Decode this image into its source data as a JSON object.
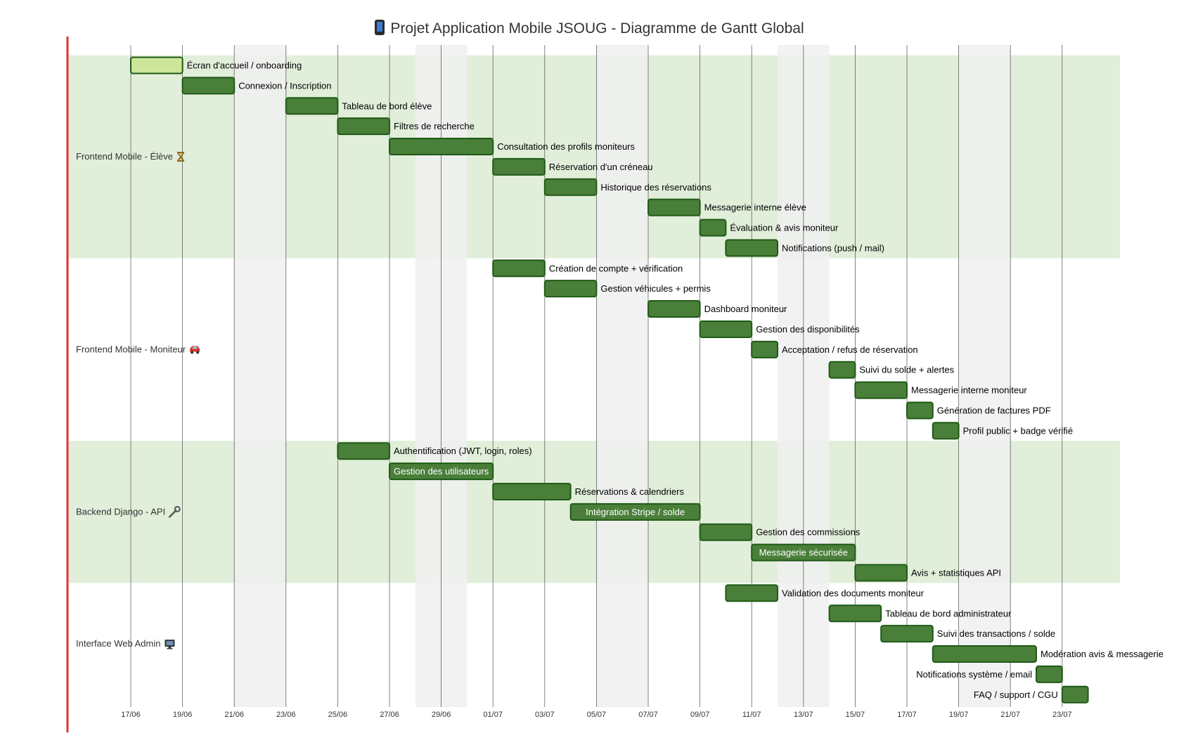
{
  "title": "Projet Application Mobile JSOUG - Diagramme de Gantt Global",
  "title_icon": "mobile-phone-icon",
  "colors": {
    "task_fill": "#4a7f3a",
    "task_stroke": "#1f5a16",
    "active_fill": "#cde59a",
    "section_band": "#e1eed9",
    "weekend": "#f0f0f0",
    "today_line": "#e03030",
    "grid": "#333333"
  },
  "chart_data": {
    "type": "gantt",
    "title": "Projet Application Mobile JSOUG - Diagramme de Gantt Global",
    "x_axis": {
      "start": "2025-06-15",
      "end": "2025-07-25",
      "tick_labels": [
        "17/06",
        "19/06",
        "21/06",
        "23/06",
        "25/06",
        "27/06",
        "29/06",
        "01/07",
        "03/07",
        "05/07",
        "07/07",
        "09/07",
        "11/07",
        "13/07",
        "15/07",
        "17/07",
        "19/07",
        "21/07",
        "23/07"
      ]
    },
    "weekends": [
      [
        "2025-06-21",
        "2025-06-23"
      ],
      [
        "2025-06-28",
        "2025-06-30"
      ],
      [
        "2025-07-05",
        "2025-07-07"
      ],
      [
        "2025-07-12",
        "2025-07-14"
      ],
      [
        "2025-07-19",
        "2025-07-21"
      ]
    ],
    "sections": [
      {
        "name": "Frontend Mobile - Élève",
        "icon": "hourglass-icon",
        "shaded": true,
        "tasks": [
          {
            "name": "Écran d'accueil / onboarding",
            "start": "2025-06-17",
            "end": "2025-06-19",
            "status": "active"
          },
          {
            "name": "Connexion / Inscription",
            "start": "2025-06-19",
            "end": "2025-06-21"
          },
          {
            "name": "Tableau de bord élève",
            "start": "2025-06-23",
            "end": "2025-06-25"
          },
          {
            "name": "Filtres de recherche",
            "start": "2025-06-25",
            "end": "2025-06-27"
          },
          {
            "name": "Consultation des profils moniteurs",
            "start": "2025-06-27",
            "end": "2025-07-01"
          },
          {
            "name": "Réservation d'un créneau",
            "start": "2025-07-01",
            "end": "2025-07-03"
          },
          {
            "name": "Historique des réservations",
            "start": "2025-07-03",
            "end": "2025-07-05"
          },
          {
            "name": "Messagerie interne élève",
            "start": "2025-07-07",
            "end": "2025-07-09"
          },
          {
            "name": "Évaluation & avis moniteur",
            "start": "2025-07-09",
            "end": "2025-07-10"
          },
          {
            "name": "Notifications (push / mail)",
            "start": "2025-07-10",
            "end": "2025-07-12"
          }
        ]
      },
      {
        "name": "Frontend Mobile - Moniteur",
        "icon": "car-icon",
        "shaded": false,
        "tasks": [
          {
            "name": "Création de compte + vérification",
            "start": "2025-07-01",
            "end": "2025-07-03"
          },
          {
            "name": "Gestion véhicules + permis",
            "start": "2025-07-03",
            "end": "2025-07-05"
          },
          {
            "name": "Dashboard moniteur",
            "start": "2025-07-07",
            "end": "2025-07-09"
          },
          {
            "name": "Gestion des disponibilités",
            "start": "2025-07-09",
            "end": "2025-07-11"
          },
          {
            "name": "Acceptation / refus de réservation",
            "start": "2025-07-11",
            "end": "2025-07-12"
          },
          {
            "name": "Suivi du solde + alertes",
            "start": "2025-07-14",
            "end": "2025-07-15"
          },
          {
            "name": "Messagerie interne moniteur",
            "start": "2025-07-15",
            "end": "2025-07-17"
          },
          {
            "name": "Génération de factures PDF",
            "start": "2025-07-17",
            "end": "2025-07-18"
          },
          {
            "name": "Profil public + badge vérifié",
            "start": "2025-07-18",
            "end": "2025-07-19"
          }
        ]
      },
      {
        "name": "Backend Django - API",
        "icon": "wrench-icon",
        "shaded": true,
        "tasks": [
          {
            "name": "Authentification (JWT, login, roles)",
            "start": "2025-06-25",
            "end": "2025-06-27"
          },
          {
            "name": "Gestion des utilisateurs",
            "start": "2025-06-27",
            "end": "2025-07-01"
          },
          {
            "name": "Réservations & calendriers",
            "start": "2025-07-01",
            "end": "2025-07-04"
          },
          {
            "name": "Intégration Stripe / solde",
            "start": "2025-07-04",
            "end": "2025-07-09"
          },
          {
            "name": "Gestion des commissions",
            "start": "2025-07-09",
            "end": "2025-07-11"
          },
          {
            "name": "Messagerie sécurisée",
            "start": "2025-07-11",
            "end": "2025-07-15"
          },
          {
            "name": "Avis + statistiques API",
            "start": "2025-07-15",
            "end": "2025-07-17"
          }
        ]
      },
      {
        "name": "Interface Web Admin",
        "icon": "desktop-computer-icon",
        "shaded": false,
        "tasks": [
          {
            "name": "Validation des documents moniteur",
            "start": "2025-07-10",
            "end": "2025-07-12"
          },
          {
            "name": "Tableau de bord administrateur",
            "start": "2025-07-14",
            "end": "2025-07-16"
          },
          {
            "name": "Suivi des transactions / solde",
            "start": "2025-07-16",
            "end": "2025-07-18"
          },
          {
            "name": "Modération avis & messagerie",
            "start": "2025-07-18",
            "end": "2025-07-22"
          },
          {
            "name": "Notifications système / email",
            "start": "2025-07-22",
            "end": "2025-07-23"
          },
          {
            "name": "FAQ / support / CGU",
            "start": "2025-07-23",
            "end": "2025-07-24"
          }
        ]
      }
    ]
  }
}
